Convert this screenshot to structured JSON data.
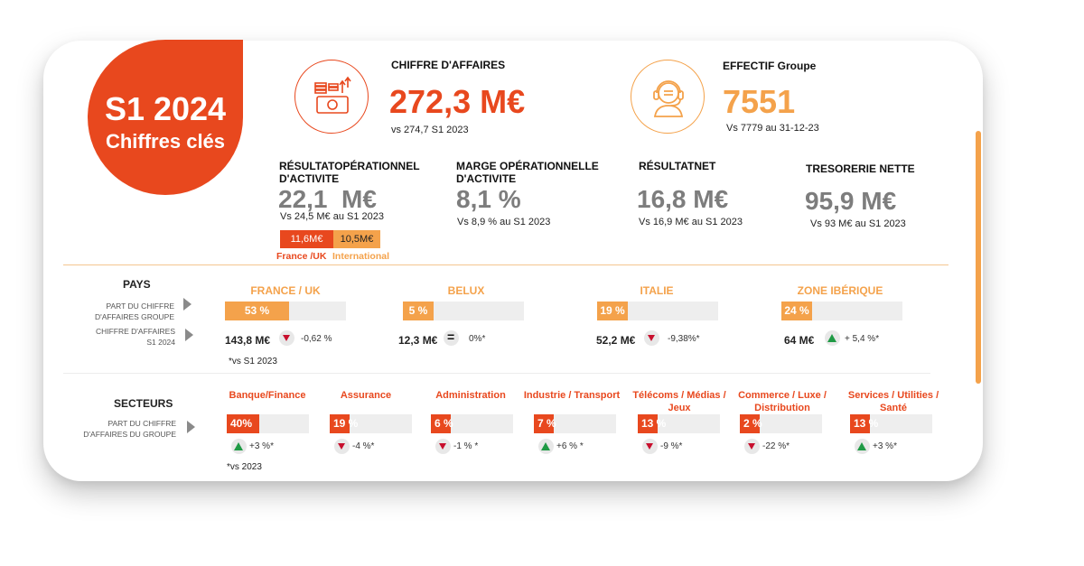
{
  "header": {
    "title": "S1 2024",
    "subtitle": "Chiffres clés"
  },
  "colors": {
    "accent_red": "#e8481e",
    "accent_orange": "#f4a24b",
    "up_green": "#1f9a45",
    "down_red": "#c8102e",
    "neutral_grey": "#7d7d7d"
  },
  "revenue": {
    "icon": "coins-cash-icon",
    "label": "CHIFFRE D'AFFAIRES",
    "value": "272,3 M€",
    "comparison": "vs 274,7 S1 2023"
  },
  "headcount": {
    "icon": "support-agent-icon",
    "label": "EFFECTIF Groupe",
    "value": "7551",
    "comparison": "Vs 7779 au 31-12-23"
  },
  "kpis": [
    {
      "label": "RÉSULTATOPÉRATIONNEL D'ACTIVITE",
      "value": "22,1  M€",
      "comparison": "Vs 24,5 M€ au S1 2023"
    },
    {
      "label": "MARGE OPÉRATIONNELLE D'ACTIVITE",
      "value": "8,1 %",
      "comparison": "Vs 8,9 % au S1 2023"
    },
    {
      "label": "RÉSULTATNET",
      "value": "16,8 M€",
      "comparison": "Vs 16,9 M€ au S1 2023"
    },
    {
      "label": "TRESORERIE NETTE",
      "value": "95,9 M€",
      "comparison": "Vs 93 M€ au S1 2023"
    }
  ],
  "split": {
    "france_value": "11,6M€",
    "intl_value": "10,5M€",
    "france_label": "France /UK",
    "intl_label": "International"
  },
  "pays": {
    "title": "PAYS",
    "row1_label": [
      "PART DU CHIFFRE",
      "D'AFFAIRES GROUPE"
    ],
    "row2_label": [
      "CHIFFRE D'AFFAIRES",
      "S1 2024"
    ],
    "footnote": "*vs S1 2023",
    "items": [
      {
        "name": "FRANCE / UK",
        "share": "53 %",
        "share_pct": 53,
        "revenue": "143,8 M€",
        "trend": "down",
        "change": "-0,62 %"
      },
      {
        "name": "BELUX",
        "share": "5 %",
        "share_pct": 5,
        "revenue": "12,3 M€",
        "trend": "equal",
        "change": "0%*"
      },
      {
        "name": "ITALIE",
        "share": "19 %",
        "share_pct": 19,
        "revenue": "52,2 M€",
        "trend": "down",
        "change": "-9,38%*"
      },
      {
        "name": "ZONE IBÉRIQUE",
        "share": "24 %",
        "share_pct": 24,
        "revenue": "64 M€",
        "trend": "up",
        "change": "+ 5,4 %*"
      }
    ]
  },
  "secteurs": {
    "title": "SECTEURS",
    "row_label": [
      "PART DU CHIFFRE",
      "D'AFFAIRES  DU GROUPE"
    ],
    "footnote": "*vs 2023",
    "items": [
      {
        "name": "Banque/Finance",
        "share": "40%",
        "share_pct": 40,
        "trend": "up",
        "change": "+3 %*"
      },
      {
        "name": "Assurance",
        "share": "19 %",
        "share_pct": 19,
        "trend": "down",
        "change": "-4 %*"
      },
      {
        "name": "Administration",
        "share": "6 %",
        "share_pct": 6,
        "trend": "down",
        "change": "-1 % *"
      },
      {
        "name": "Industrie / Transport",
        "share": "7 %",
        "share_pct": 7,
        "trend": "up",
        "change": "+6 % *"
      },
      {
        "name": "Télécoms / Médias / Jeux",
        "share": "13 %",
        "share_pct": 13,
        "trend": "down",
        "change": "-9 %*"
      },
      {
        "name": "Commerce / Luxe / Distribution",
        "share": "2 %",
        "share_pct": 2,
        "trend": "down",
        "change": "-22 %*"
      },
      {
        "name": "Services / Utilities / Santé",
        "share": "13 %",
        "share_pct": 13,
        "trend": "up",
        "change": "+3 %*"
      }
    ]
  }
}
